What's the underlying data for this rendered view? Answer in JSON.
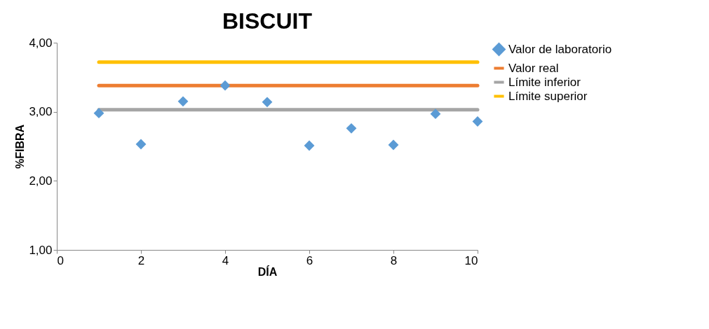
{
  "chart_data": {
    "type": "scatter",
    "title": "BISCUIT",
    "xlabel": "DÍA",
    "ylabel": "%FIBRA",
    "x": [
      1,
      2,
      3,
      4,
      5,
      6,
      7,
      8,
      9,
      10
    ],
    "series": [
      {
        "name": "Valor de laboratorio",
        "type": "scatter",
        "color": "#5b9bd5",
        "marker": "diamond",
        "values": [
          2.98,
          2.53,
          3.15,
          3.38,
          3.14,
          2.51,
          2.76,
          2.52,
          2.97,
          2.86
        ]
      },
      {
        "name": "Valor real",
        "type": "line",
        "color": "#ed7d31",
        "values": [
          3.38,
          3.38,
          3.38,
          3.38,
          3.38,
          3.38,
          3.38,
          3.38,
          3.38,
          3.38
        ]
      },
      {
        "name": "Límite inferior",
        "type": "line",
        "color": "#a5a5a5",
        "values": [
          3.03,
          3.03,
          3.03,
          3.03,
          3.03,
          3.03,
          3.03,
          3.03,
          3.03,
          3.03
        ]
      },
      {
        "name": "Límite superior",
        "type": "line",
        "color": "#ffc000",
        "values": [
          3.72,
          3.72,
          3.72,
          3.72,
          3.72,
          3.72,
          3.72,
          3.72,
          3.72,
          3.72
        ]
      }
    ],
    "xlim": [
      0,
      10
    ],
    "xticks": [
      0,
      2,
      4,
      6,
      8,
      10
    ],
    "ylim": [
      1,
      4
    ],
    "yticks": [
      {
        "value": 1,
        "label": "1,00"
      },
      {
        "value": 2,
        "label": "2,00"
      },
      {
        "value": 3,
        "label": "3,00"
      },
      {
        "value": 4,
        "label": "4,00"
      }
    ],
    "grid": false,
    "legend": "right"
  }
}
